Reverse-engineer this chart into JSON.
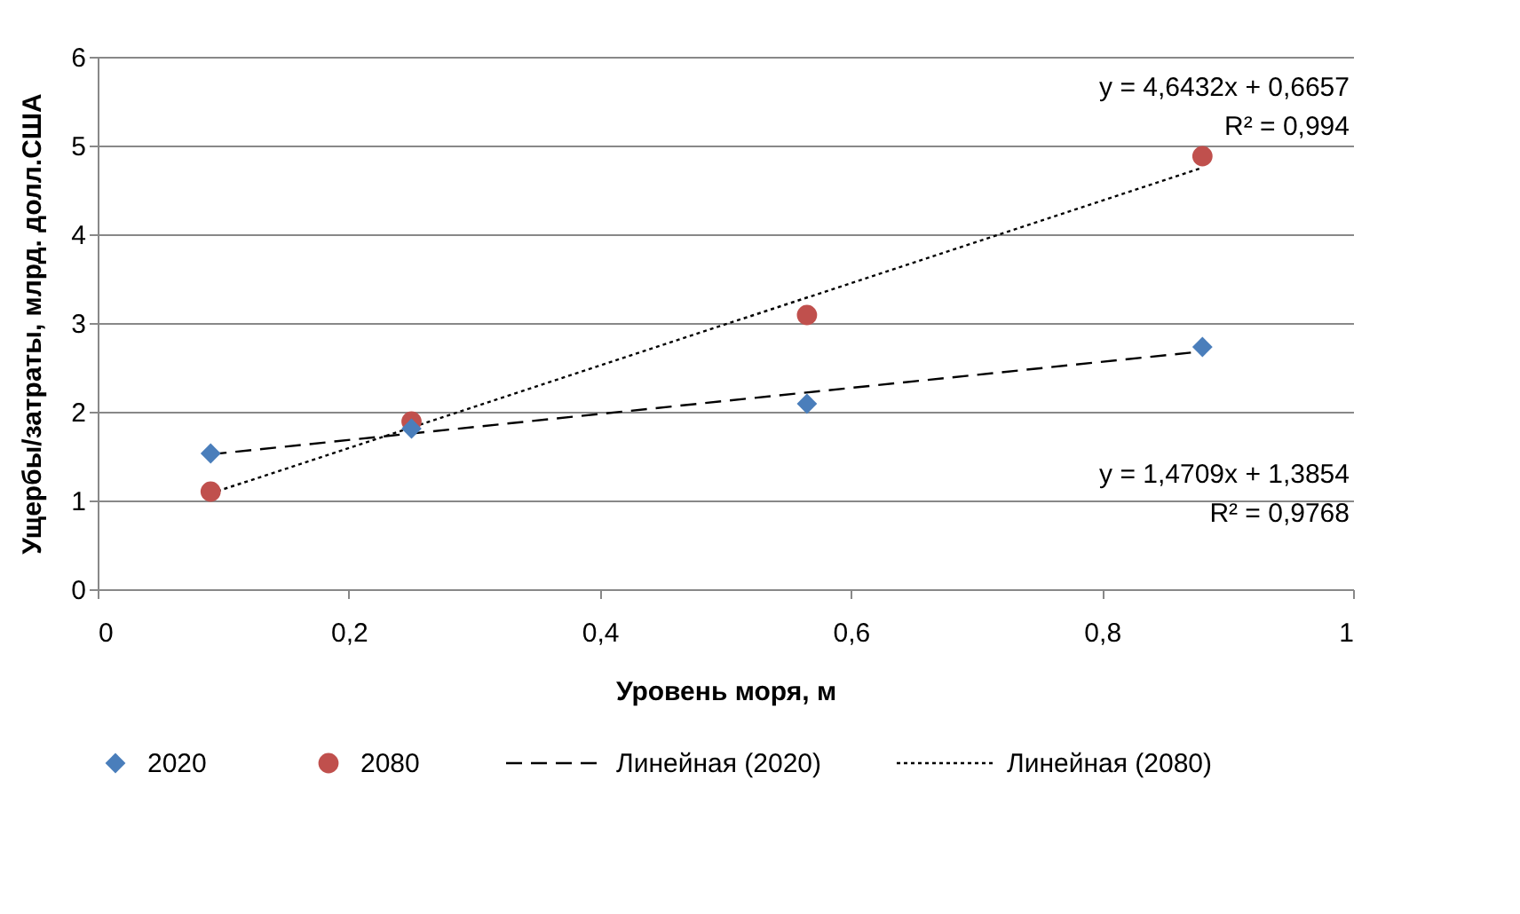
{
  "chart_data": {
    "type": "scatter",
    "xlabel": "Уровень моря, м",
    "ylabel": "Ущербы/затраты, млрд. долл.США",
    "xlim": [
      0,
      1
    ],
    "xticks": [
      0,
      {
        "value": 0.2,
        "label": "0,2"
      },
      {
        "value": 0.4,
        "label": "0,4"
      },
      {
        "value": 0.6,
        "label": "0,6"
      },
      {
        "value": 0.8,
        "label": "0,8"
      },
      1
    ],
    "ylim": [
      0,
      6
    ],
    "yticks": [
      0,
      1,
      2,
      3,
      4,
      5,
      6
    ],
    "grid": "y",
    "legend": "bottom",
    "series": [
      {
        "name": "2020",
        "marker": "diamond",
        "color": "#4a7ebb",
        "x": [
          0.09,
          0.25,
          0.565,
          0.88
        ],
        "values": [
          1.53,
          1.81,
          2.09,
          2.73
        ]
      },
      {
        "name": "2080",
        "marker": "circle",
        "color": "#c0504d",
        "x": [
          0.09,
          0.25,
          0.565,
          0.88
        ],
        "values": [
          1.1,
          1.89,
          3.09,
          4.88
        ]
      },
      {
        "name": "Линейная (2020)",
        "type": "line",
        "line_style": "dashed",
        "color": "#000000",
        "x": [
          0.09,
          0.88
        ],
        "values": [
          1.52,
          2.68
        ]
      },
      {
        "name": "Линейная (2080)",
        "type": "line",
        "line_style": "dotted",
        "color": "#000000",
        "x": [
          0.09,
          0.88
        ],
        "values": [
          1.08,
          4.75
        ]
      }
    ],
    "annotations": [
      "y = 4,6432x + 0,6657\nR² = 0,994",
      "y = 1,4709x + 1,3854\nR² = 0,9768"
    ]
  }
}
